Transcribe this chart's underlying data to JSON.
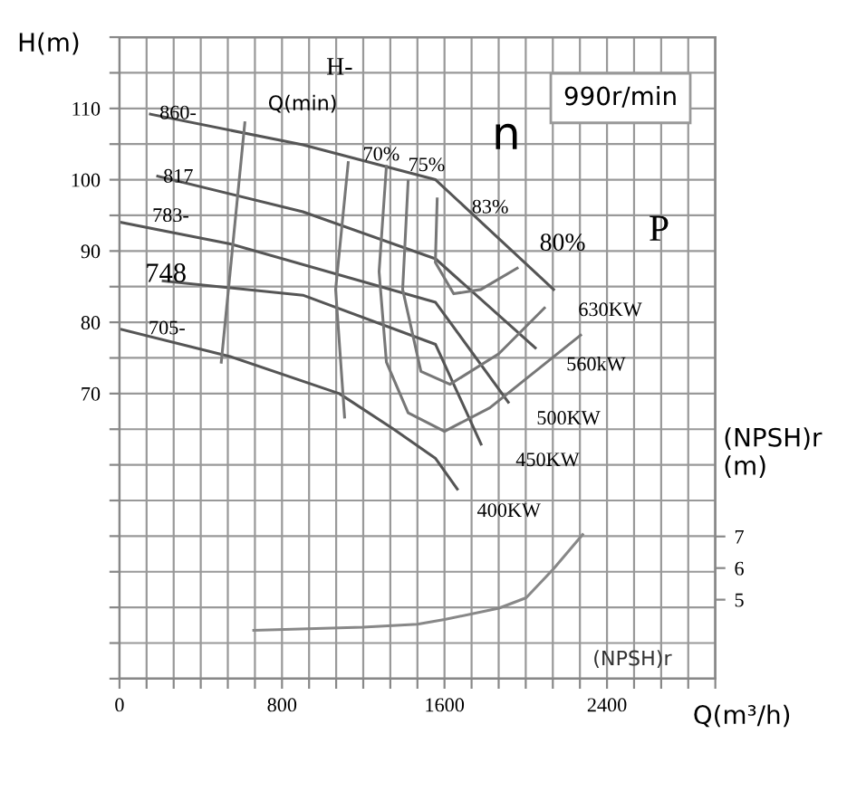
{
  "chart_data": {
    "type": "line",
    "ylabel": "H(m)",
    "xlabel": "Q(m³/h)",
    "y2label": "(NPSH)r\n(m)",
    "xlim": [
      0,
      2933.3
    ],
    "ylim": [
      30,
      120
    ],
    "y2lim": [
      2.5,
      22.8
    ],
    "xticks": [
      0,
      {
        "value": 133.3,
        "label": null
      },
      {
        "value": 266.7,
        "label": null
      },
      {
        "value": 400,
        "label": null
      },
      {
        "value": 533.3,
        "label": null
      },
      {
        "value": 666.7,
        "label": null
      },
      800,
      {
        "value": 933.3,
        "label": null
      },
      {
        "value": 1066.7,
        "label": null
      },
      {
        "value": 1200,
        "label": null
      },
      {
        "value": 1333.3,
        "label": null
      },
      {
        "value": 1466.7,
        "label": null
      },
      1600,
      {
        "value": 1733.3,
        "label": null
      },
      {
        "value": 1866.7,
        "label": null
      },
      {
        "value": 2000,
        "label": null
      },
      {
        "value": 2133.3,
        "label": null
      },
      {
        "value": 2266.7,
        "label": null
      },
      2400,
      {
        "value": 2533.3,
        "label": null
      },
      {
        "value": 2666.7,
        "label": null
      },
      {
        "value": 2800,
        "label": null
      },
      {
        "value": 2933.3,
        "label": null
      }
    ],
    "yticks": [
      {
        "value": 30,
        "label": null
      },
      {
        "value": 35,
        "label": null
      },
      {
        "value": 40,
        "label": null
      },
      {
        "value": 45,
        "label": null
      },
      {
        "value": 50,
        "label": null
      },
      {
        "value": 55,
        "label": null
      },
      {
        "value": 60,
        "label": null
      },
      {
        "value": 65,
        "label": null
      },
      70,
      {
        "value": 75,
        "label": null
      },
      80,
      {
        "value": 85,
        "label": null
      },
      90,
      {
        "value": 95,
        "label": null
      },
      100,
      {
        "value": 105,
        "label": null
      },
      110,
      {
        "value": 115,
        "label": null
      },
      {
        "value": 120,
        "label": null
      }
    ],
    "y2ticks": [
      5,
      6,
      7
    ],
    "grid": true,
    "marker": "none",
    "line_style": "solid",
    "series": [
      {
        "color": "#555555",
        "x": [
          152,
          903,
          1556,
          2137
        ],
        "values": [
          109.2,
          104.9,
          100,
          84.6
        ]
      },
      {
        "color": "#555555",
        "x": [
          188,
          903,
          1556,
          2047
        ],
        "values": [
          100.5,
          95.5,
          88.9,
          76.4
        ]
      },
      {
        "color": "#555555",
        "x": [
          9,
          545,
          1556,
          1914
        ],
        "values": [
          94,
          91,
          82.8,
          68.8
        ]
      },
      {
        "color": "#555555",
        "x": [
          215,
          903,
          1556,
          1780
        ],
        "values": [
          85.8,
          83.8,
          76.9,
          62.9
        ]
      },
      {
        "color": "#555555",
        "x": [
          9,
          545,
          1082,
          1350,
          1556,
          1663
        ],
        "values": [
          79,
          75.2,
          70,
          65,
          60.9,
          56.6
        ]
      },
      {
        "color": "#777777",
        "x": [
          1126,
          1064,
          1108
        ],
        "values": [
          102.4,
          84.6,
          66.7
        ]
      },
      {
        "color": "#777777",
        "x": [
          1314,
          1278,
          1314,
          1421,
          1600,
          1823,
          2270
        ],
        "values": [
          101.9,
          87.1,
          74.4,
          67.3,
          64.7,
          68,
          78.2
        ]
      },
      {
        "color": "#777777",
        "x": [
          1421,
          1394,
          1484,
          1627,
          1868,
          2092
        ],
        "values": [
          99.8,
          84.6,
          73.1,
          71.3,
          75.6,
          82
        ]
      },
      {
        "color": "#777777",
        "x": [
          1564,
          1555,
          1645,
          1779,
          1958
        ],
        "values": [
          97.3,
          88.4,
          84,
          84.6,
          87.6
        ]
      },
      {
        "color": "#777777",
        "x": [
          617,
          501
        ],
        "values": [
          108,
          74.4
        ]
      },
      {
        "name": "(NPSH)r",
        "color": "#888888",
        "axis": "y2",
        "x": [
          661,
          1198,
          1466,
          1600,
          1868,
          2002,
          2136,
          2280
        ],
        "values": [
          4.03,
          4.13,
          4.22,
          4.37,
          4.73,
          5.06,
          5.97,
          7.06
        ]
      }
    ],
    "annotations": [
      {
        "text": "860-",
        "x": 197,
        "y": 109.2
      },
      {
        "text": "817",
        "x": 215,
        "y": 100.3
      },
      {
        "text": "705-",
        "x": 143,
        "y": 79
      },
      {
        "text": "70%",
        "x": 1198,
        "y": 103.4
      },
      {
        "text": "75%",
        "x": 1421,
        "y": 101.9
      },
      {
        "text": "83%",
        "x": 1734,
        "y": 96
      },
      "783-",
      "748",
      "Q(min)",
      "H-",
      "n",
      "80%",
      "P",
      "630KW",
      "560kW",
      "500KW",
      "450KW",
      "400KW",
      "990r/min"
    ]
  }
}
